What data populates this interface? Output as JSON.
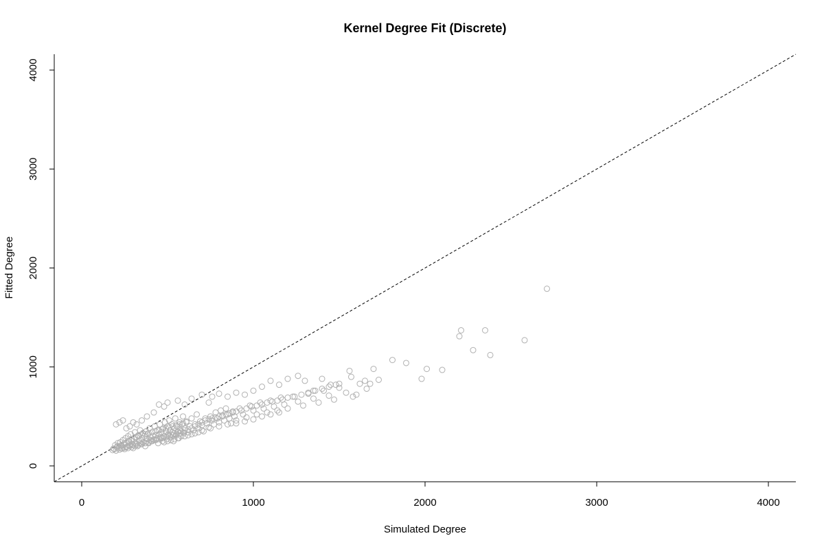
{
  "chart_data": {
    "type": "scatter",
    "title": "Kernel Degree Fit (Discrete)",
    "xlabel": "Simulated Degree",
    "ylabel": "Fitted Degree",
    "xlim": [
      -160,
      4160
    ],
    "ylim": [
      -160,
      4160
    ],
    "xticks": [
      0,
      1000,
      2000,
      3000,
      4000
    ],
    "yticks": [
      0,
      1000,
      2000,
      3000,
      4000
    ],
    "xtick_labels": [
      "0",
      "1000",
      "2000",
      "3000",
      "4000"
    ],
    "ytick_labels": [
      "0",
      "1000",
      "2000",
      "3000",
      "4000"
    ],
    "grid": false,
    "reference_line": {
      "style": "dashed",
      "slope": 1,
      "intercept": 0,
      "color": "#333333"
    },
    "marker": {
      "shape": "open-circle",
      "color": "#b0b0b0"
    },
    "points": [
      [
        180,
        160
      ],
      [
        185,
        175
      ],
      [
        190,
        170
      ],
      [
        195,
        210
      ],
      [
        200,
        155
      ],
      [
        205,
        190
      ],
      [
        210,
        230
      ],
      [
        215,
        180
      ],
      [
        220,
        165
      ],
      [
        225,
        240
      ],
      [
        230,
        200
      ],
      [
        235,
        175
      ],
      [
        240,
        260
      ],
      [
        245,
        215
      ],
      [
        250,
        185
      ],
      [
        255,
        280
      ],
      [
        260,
        230
      ],
      [
        265,
        195
      ],
      [
        270,
        300
      ],
      [
        275,
        245
      ],
      [
        280,
        210
      ],
      [
        285,
        320
      ],
      [
        290,
        255
      ],
      [
        295,
        220
      ],
      [
        300,
        180
      ],
      [
        305,
        270
      ],
      [
        310,
        340
      ],
      [
        315,
        230
      ],
      [
        320,
        290
      ],
      [
        325,
        200
      ],
      [
        330,
        310
      ],
      [
        335,
        250
      ],
      [
        340,
        360
      ],
      [
        345,
        220
      ],
      [
        350,
        280
      ],
      [
        355,
        330
      ],
      [
        360,
        240
      ],
      [
        365,
        300
      ],
      [
        370,
        200
      ],
      [
        375,
        350
      ],
      [
        380,
        270
      ],
      [
        385,
        320
      ],
      [
        390,
        230
      ],
      [
        395,
        380
      ],
      [
        400,
        290
      ],
      [
        405,
        250
      ],
      [
        410,
        340
      ],
      [
        415,
        300
      ],
      [
        420,
        260
      ],
      [
        425,
        400
      ],
      [
        430,
        310
      ],
      [
        435,
        270
      ],
      [
        440,
        360
      ],
      [
        445,
        230
      ],
      [
        450,
        320
      ],
      [
        455,
        420
      ],
      [
        460,
        280
      ],
      [
        465,
        340
      ],
      [
        470,
        250
      ],
      [
        475,
        380
      ],
      [
        480,
        300
      ],
      [
        485,
        440
      ],
      [
        490,
        350
      ],
      [
        495,
        270
      ],
      [
        500,
        400
      ],
      [
        505,
        320
      ],
      [
        510,
        460
      ],
      [
        515,
        360
      ],
      [
        520,
        290
      ],
      [
        525,
        420
      ],
      [
        530,
        340
      ],
      [
        535,
        250
      ],
      [
        540,
        380
      ],
      [
        545,
        480
      ],
      [
        550,
        310
      ],
      [
        555,
        400
      ],
      [
        560,
        350
      ],
      [
        565,
        280
      ],
      [
        570,
        440
      ],
      [
        575,
        360
      ],
      [
        580,
        300
      ],
      [
        585,
        420
      ],
      [
        590,
        500
      ],
      [
        595,
        330
      ],
      [
        600,
        380
      ],
      [
        610,
        450
      ],
      [
        620,
        340
      ],
      [
        630,
        400
      ],
      [
        640,
        480
      ],
      [
        650,
        360
      ],
      [
        660,
        420
      ],
      [
        670,
        520
      ],
      [
        680,
        380
      ],
      [
        690,
        450
      ],
      [
        700,
        410
      ],
      [
        710,
        350
      ],
      [
        720,
        480
      ],
      [
        730,
        430
      ],
      [
        740,
        390
      ],
      [
        750,
        500
      ],
      [
        760,
        460
      ],
      [
        770,
        420
      ],
      [
        780,
        540
      ],
      [
        790,
        480
      ],
      [
        800,
        440
      ],
      [
        810,
        560
      ],
      [
        820,
        500
      ],
      [
        830,
        460
      ],
      [
        840,
        580
      ],
      [
        850,
        520
      ],
      [
        860,
        480
      ],
      [
        870,
        430
      ],
      [
        880,
        550
      ],
      [
        890,
        500
      ],
      [
        900,
        460
      ],
      [
        920,
        580
      ],
      [
        940,
        520
      ],
      [
        960,
        490
      ],
      [
        980,
        610
      ],
      [
        1000,
        560
      ],
      [
        1020,
        520
      ],
      [
        1040,
        640
      ],
      [
        1060,
        580
      ],
      [
        1080,
        540
      ],
      [
        1100,
        660
      ],
      [
        1120,
        600
      ],
      [
        1140,
        560
      ],
      [
        1160,
        690
      ],
      [
        1180,
        620
      ],
      [
        1200,
        580
      ],
      [
        1230,
        700
      ],
      [
        1260,
        650
      ],
      [
        1290,
        610
      ],
      [
        1320,
        730
      ],
      [
        1350,
        680
      ],
      [
        1380,
        640
      ],
      [
        1410,
        760
      ],
      [
        1440,
        710
      ],
      [
        1470,
        670
      ],
      [
        1500,
        790
      ],
      [
        1540,
        740
      ],
      [
        1580,
        700
      ],
      [
        1620,
        830
      ],
      [
        1660,
        780
      ],
      [
        1700,
        980
      ],
      [
        1730,
        870
      ],
      [
        200,
        420
      ],
      [
        220,
        440
      ],
      [
        240,
        460
      ],
      [
        260,
        380
      ],
      [
        280,
        400
      ],
      [
        300,
        440
      ],
      [
        320,
        420
      ],
      [
        350,
        460
      ],
      [
        380,
        500
      ],
      [
        420,
        540
      ],
      [
        450,
        620
      ],
      [
        480,
        600
      ],
      [
        500,
        640
      ],
      [
        560,
        660
      ],
      [
        600,
        620
      ],
      [
        640,
        680
      ],
      [
        700,
        720
      ],
      [
        740,
        640
      ],
      [
        760,
        700
      ],
      [
        800,
        730
      ],
      [
        850,
        700
      ],
      [
        900,
        740
      ],
      [
        950,
        720
      ],
      [
        1000,
        760
      ],
      [
        1050,
        800
      ],
      [
        1100,
        860
      ],
      [
        1150,
        820
      ],
      [
        1200,
        880
      ],
      [
        1260,
        910
      ],
      [
        1300,
        860
      ],
      [
        1350,
        760
      ],
      [
        1400,
        880
      ],
      [
        1450,
        820
      ],
      [
        1500,
        830
      ],
      [
        1560,
        960
      ],
      [
        1570,
        900
      ],
      [
        1600,
        720
      ],
      [
        1650,
        860
      ],
      [
        1680,
        830
      ],
      [
        1810,
        1070
      ],
      [
        1890,
        1040
      ],
      [
        1980,
        880
      ],
      [
        2010,
        980
      ],
      [
        2100,
        970
      ],
      [
        2200,
        1310
      ],
      [
        2210,
        1370
      ],
      [
        2280,
        1170
      ],
      [
        2350,
        1370
      ],
      [
        2380,
        1120
      ],
      [
        2580,
        1270
      ],
      [
        2710,
        1790
      ],
      [
        230,
        210
      ],
      [
        250,
        230
      ],
      [
        270,
        250
      ],
      [
        290,
        270
      ],
      [
        310,
        290
      ],
      [
        330,
        300
      ],
      [
        350,
        310
      ],
      [
        370,
        320
      ],
      [
        390,
        330
      ],
      [
        410,
        340
      ],
      [
        430,
        350
      ],
      [
        450,
        360
      ],
      [
        470,
        370
      ],
      [
        490,
        380
      ],
      [
        510,
        390
      ],
      [
        530,
        400
      ],
      [
        550,
        410
      ],
      [
        570,
        420
      ],
      [
        590,
        430
      ],
      [
        610,
        440
      ],
      [
        260,
        190
      ],
      [
        280,
        200
      ],
      [
        300,
        210
      ],
      [
        320,
        220
      ],
      [
        340,
        230
      ],
      [
        360,
        240
      ],
      [
        380,
        250
      ],
      [
        400,
        260
      ],
      [
        420,
        270
      ],
      [
        440,
        280
      ],
      [
        460,
        290
      ],
      [
        480,
        300
      ],
      [
        500,
        310
      ],
      [
        520,
        320
      ],
      [
        540,
        330
      ],
      [
        560,
        340
      ],
      [
        580,
        350
      ],
      [
        600,
        360
      ],
      [
        620,
        370
      ],
      [
        640,
        380
      ],
      [
        210,
        200
      ],
      [
        230,
        180
      ],
      [
        250,
        170
      ],
      [
        270,
        180
      ],
      [
        290,
        190
      ],
      [
        310,
        200
      ],
      [
        330,
        210
      ],
      [
        350,
        220
      ],
      [
        370,
        230
      ],
      [
        390,
        240
      ],
      [
        410,
        250
      ],
      [
        430,
        260
      ],
      [
        450,
        270
      ],
      [
        470,
        280
      ],
      [
        490,
        290
      ],
      [
        510,
        300
      ],
      [
        530,
        310
      ],
      [
        550,
        320
      ],
      [
        570,
        330
      ],
      [
        590,
        340
      ],
      [
        660,
        400
      ],
      [
        680,
        420
      ],
      [
        700,
        440
      ],
      [
        720,
        460
      ],
      [
        740,
        470
      ],
      [
        760,
        480
      ],
      [
        780,
        490
      ],
      [
        800,
        500
      ],
      [
        820,
        510
      ],
      [
        840,
        520
      ],
      [
        860,
        530
      ],
      [
        880,
        540
      ],
      [
        900,
        550
      ],
      [
        930,
        560
      ],
      [
        960,
        580
      ],
      [
        990,
        600
      ],
      [
        1020,
        610
      ],
      [
        1050,
        620
      ],
      [
        1080,
        640
      ],
      [
        1110,
        650
      ],
      [
        1140,
        660
      ],
      [
        1170,
        670
      ],
      [
        1200,
        690
      ],
      [
        1240,
        700
      ],
      [
        1280,
        720
      ],
      [
        1320,
        740
      ],
      [
        1360,
        760
      ],
      [
        1400,
        780
      ],
      [
        1440,
        800
      ],
      [
        1480,
        820
      ],
      [
        700,
        360
      ],
      [
        750,
        380
      ],
      [
        800,
        400
      ],
      [
        850,
        420
      ],
      [
        900,
        430
      ],
      [
        950,
        450
      ],
      [
        1000,
        470
      ],
      [
        1050,
        500
      ],
      [
        1100,
        520
      ],
      [
        1150,
        540
      ],
      [
        600,
        300
      ],
      [
        620,
        310
      ],
      [
        640,
        320
      ],
      [
        660,
        330
      ],
      [
        680,
        340
      ],
      [
        560,
        280
      ],
      [
        540,
        270
      ],
      [
        520,
        260
      ],
      [
        500,
        250
      ],
      [
        480,
        240
      ]
    ]
  }
}
